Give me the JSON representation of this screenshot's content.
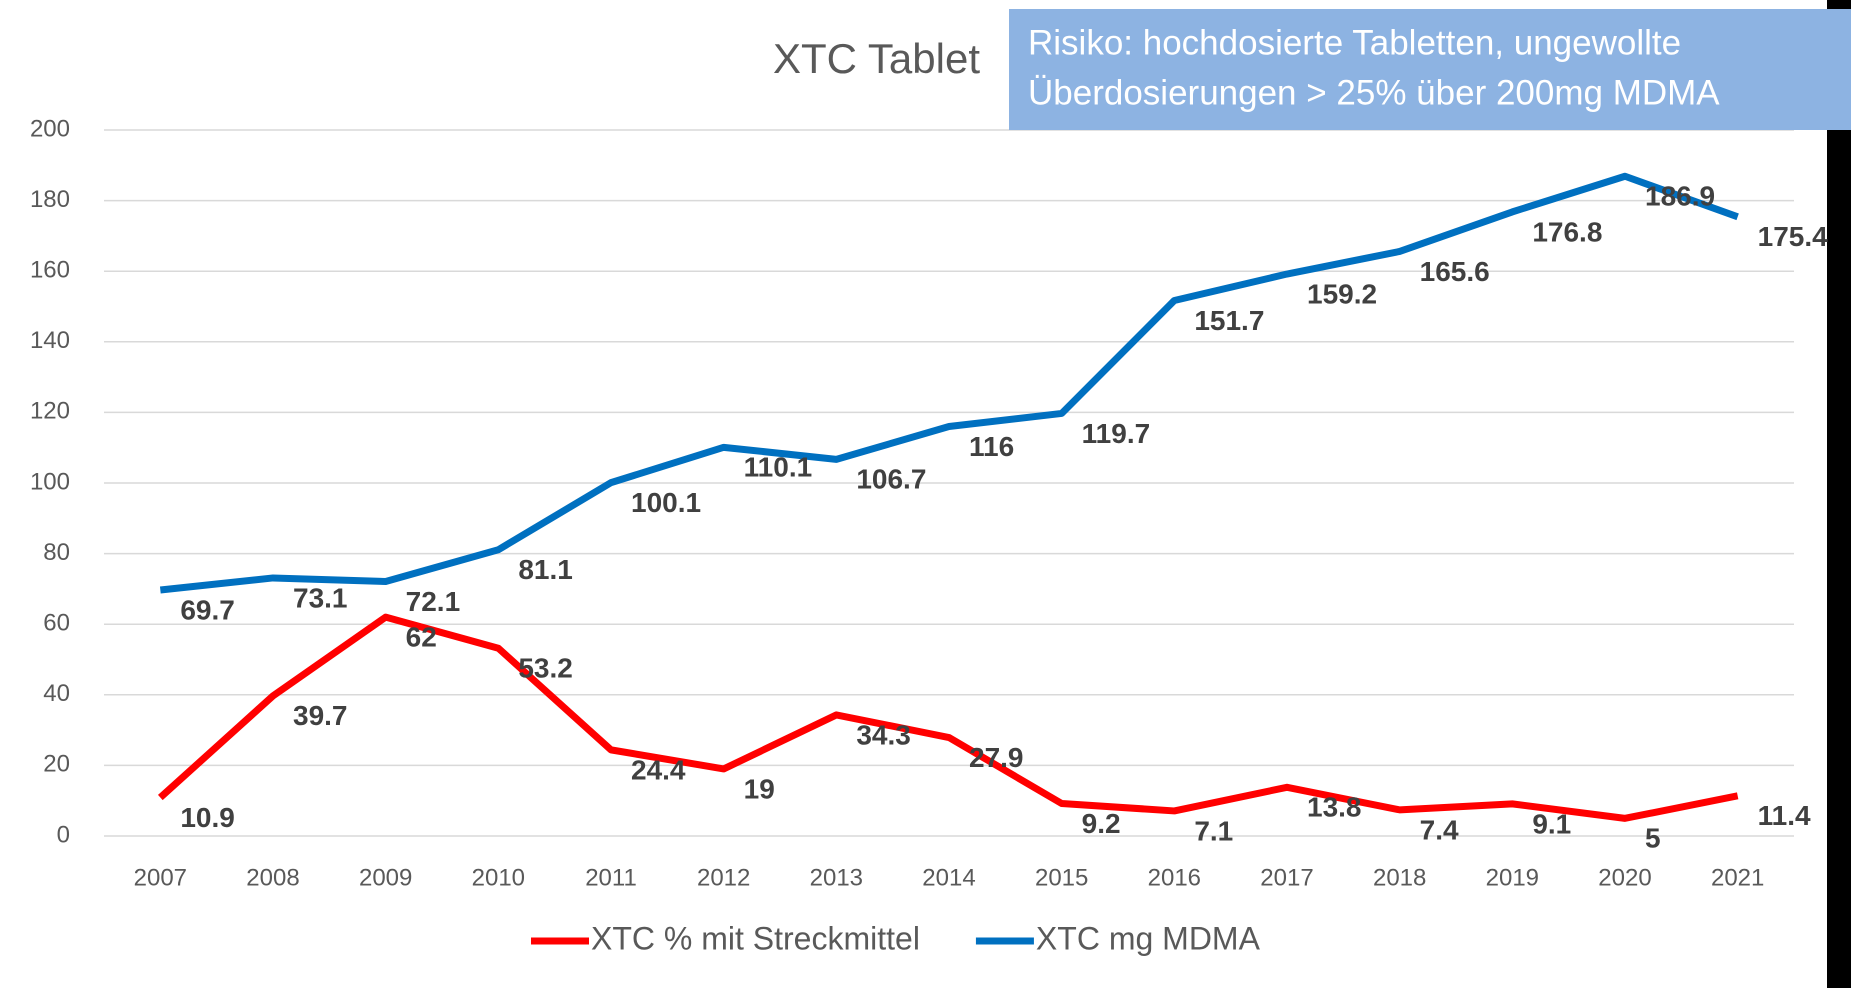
{
  "chart_data": {
    "type": "line",
    "title": "XTC Tablet",
    "annotation": [
      "Risiko: hochdosierte Tabletten, ungewollte",
      "Überdosierungen > 25% über 200mg MDMA"
    ],
    "categories": [
      "2007",
      "2008",
      "2009",
      "2010",
      "2011",
      "2012",
      "2013",
      "2014",
      "2015",
      "2016",
      "2017",
      "2018",
      "2019",
      "2020",
      "2021"
    ],
    "series": [
      {
        "name": "XTC % mit Streckmittel",
        "color": "#ff0000",
        "values": [
          10.9,
          39.7,
          62,
          53.2,
          24.4,
          19,
          34.3,
          27.9,
          9.2,
          7.1,
          13.8,
          7.4,
          9.1,
          5,
          11.4
        ]
      },
      {
        "name": "XTC mg MDMA",
        "color": "#0070c0",
        "values": [
          69.7,
          73.1,
          72.1,
          81.1,
          100.1,
          110.1,
          106.7,
          116,
          119.7,
          151.7,
          159.2,
          165.6,
          176.8,
          186.9,
          175.4
        ]
      }
    ],
    "ylim": [
      0,
      200
    ],
    "yticks": [
      0,
      20,
      40,
      60,
      80,
      100,
      120,
      140,
      160,
      180,
      200
    ],
    "grid": true,
    "legend": "bottom"
  }
}
